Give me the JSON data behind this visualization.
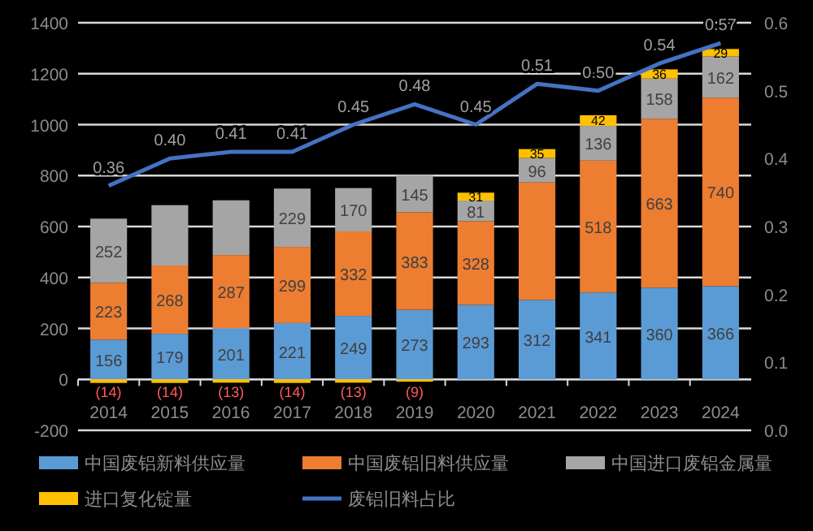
{
  "chart_data": {
    "type": "bar",
    "stacked": true,
    "categories": [
      "2014",
      "2015",
      "2016",
      "2017",
      "2018",
      "2019",
      "2020",
      "2021",
      "2022",
      "2023",
      "2024"
    ],
    "series": [
      {
        "name": "中国废铝新料供应量",
        "color": "#5b9bd5",
        "values": [
          156,
          179,
          201,
          221,
          249,
          273,
          293,
          312,
          341,
          360,
          366
        ],
        "value_labels": [
          "156",
          "179",
          "201",
          "221",
          "249",
          "273",
          "293",
          "312",
          "341",
          "360",
          "366"
        ]
      },
      {
        "name": "中国废铝旧料供应量",
        "color": "#ed7d31",
        "values": [
          223,
          268,
          287,
          299,
          332,
          383,
          328,
          461,
          518,
          663,
          740
        ],
        "value_labels": [
          "223",
          "268",
          "287",
          "299",
          "332",
          "383",
          "328",
          null,
          "518",
          "663",
          "740"
        ]
      },
      {
        "name": "中国进口废铝金属量",
        "color": "#a5a5a5",
        "values": [
          252,
          237,
          215,
          229,
          170,
          145,
          81,
          96,
          136,
          158,
          162
        ],
        "value_labels": [
          "252",
          null,
          null,
          "229",
          "170",
          "145",
          "81",
          "96",
          "136",
          "158",
          "162"
        ]
      },
      {
        "name": "进口复化锭量",
        "color": "#ffc000",
        "values": [
          -14,
          -14,
          -13,
          -14,
          -13,
          -9,
          31,
          35,
          42,
          36,
          29
        ],
        "value_labels": [
          "(14)",
          "(14)",
          "(13)",
          "(14)",
          "(13)",
          "(9)",
          "31",
          "35",
          "42",
          "36",
          "29"
        ]
      },
      {
        "name": "废铝旧料占比",
        "type": "line",
        "axis": "y2",
        "color": "#4472c4",
        "values": [
          0.36,
          0.4,
          0.41,
          0.41,
          0.45,
          0.48,
          0.45,
          0.51,
          0.5,
          0.54,
          0.57
        ],
        "value_labels": [
          "0.36",
          "0.40",
          "0.41",
          "0.41",
          "0.45",
          "0.48",
          "0.45",
          "0.51",
          "0.50",
          "0.54",
          "0.57"
        ]
      }
    ],
    "ylim": [
      -200,
      1400
    ],
    "yticks": [
      -200,
      0,
      200,
      400,
      600,
      800,
      1000,
      1200,
      1400
    ],
    "y2lim": [
      0,
      0.6
    ],
    "y2ticks": [
      {
        "value": 0,
        "label": "0.0"
      },
      {
        "value": 0.1,
        "label": "0.1"
      },
      {
        "value": 0.2,
        "label": "0.2"
      },
      {
        "value": 0.3,
        "label": "0.3"
      },
      {
        "value": 0.4,
        "label": "0.4"
      },
      {
        "value": 0.5,
        "label": "0.5"
      },
      {
        "value": 0.6,
        "label": "0.6"
      }
    ],
    "grid": "y",
    "legend": "bottom",
    "marker": "none",
    "line_style": "solid"
  }
}
